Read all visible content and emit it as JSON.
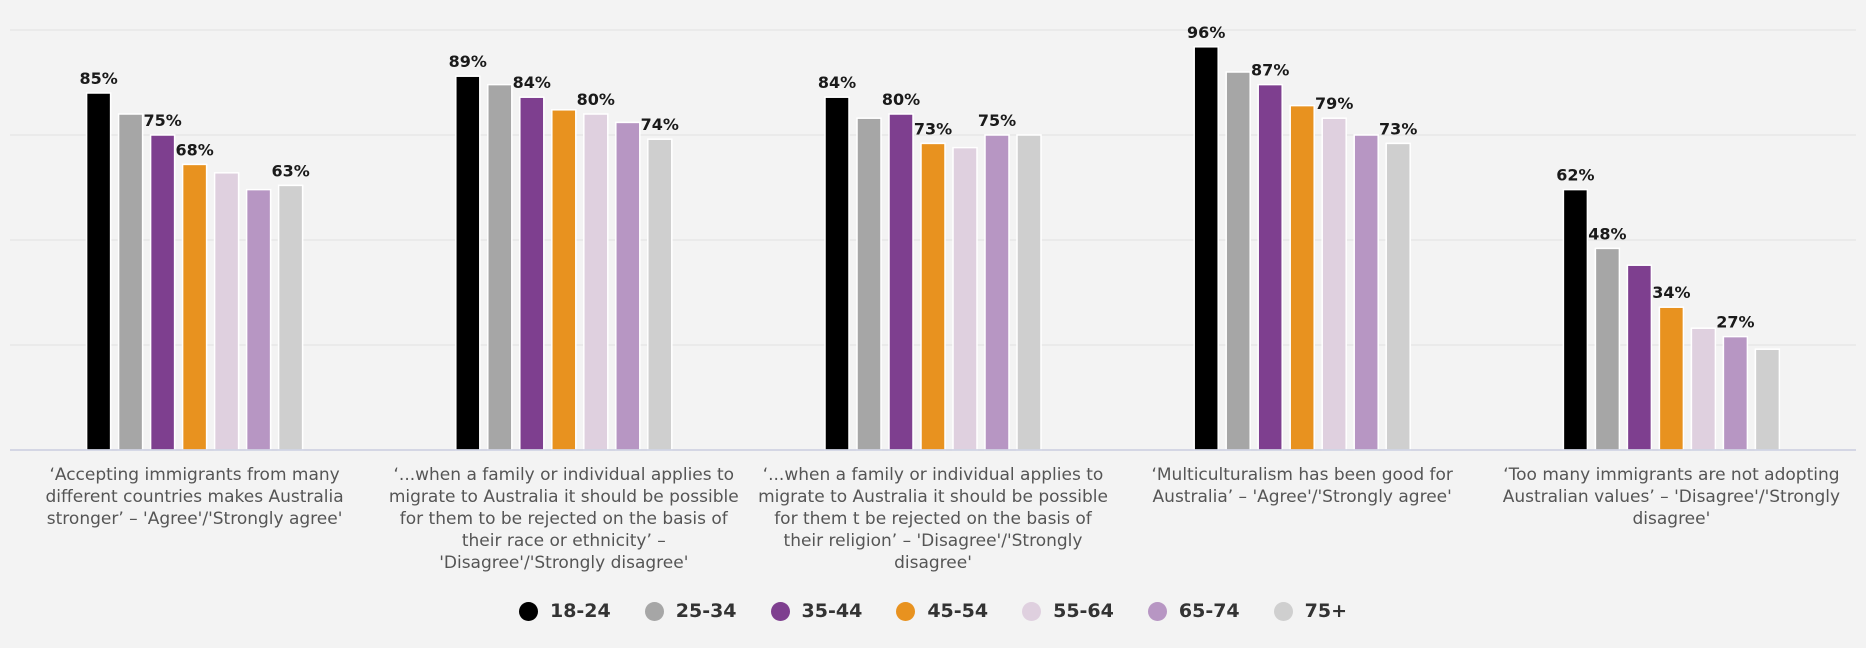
{
  "chart_data": {
    "type": "bar",
    "title": "",
    "xlabel": "",
    "ylabel": "",
    "ylim": [
      0,
      100
    ],
    "grid": true,
    "legend_position": "bottom-center",
    "categories": [
      "‘Accepting immigrants from many different countries makes Australia stronger’ – 'Agree'/'Strongly agree'",
      "‘...when a family or individual applies to migrate to Australia it should be possible for them to be rejected on the basis of their race or ethnicity’ – 'Disagree'/'Strongly disagree'",
      "‘...when a family or individual applies to migrate to Australia it should be possible for them t be rejected on the basis of their religion’ – 'Disagree'/'Strongly disagree'",
      "‘Multiculturalism has been good for Australia’ – 'Agree'/'Strongly agree'",
      "‘Too many immigrants are not adopting Australian values’ – 'Disagree'/'Strongly disagree'"
    ],
    "series": [
      {
        "name": "18-24",
        "color": "#000000",
        "values": [
          85,
          89,
          84,
          96,
          62
        ],
        "labels": [
          "85%",
          "89%",
          "84%",
          "96%",
          "62%"
        ]
      },
      {
        "name": "25-34",
        "color": "#a6a6a6",
        "values": [
          80,
          87,
          79,
          90,
          48
        ],
        "labels": [
          "",
          "",
          "",
          "",
          "48%"
        ]
      },
      {
        "name": "35-44",
        "color": "#7e3f8f",
        "values": [
          75,
          84,
          80,
          87,
          44
        ],
        "labels": [
          "75%",
          "84%",
          "80%",
          "87%",
          ""
        ]
      },
      {
        "name": "45-54",
        "color": "#e8921f",
        "values": [
          68,
          81,
          73,
          82,
          34
        ],
        "labels": [
          "68%",
          "",
          "73%",
          "",
          "34%"
        ]
      },
      {
        "name": "55-64",
        "color": "#dfd0df",
        "values": [
          66,
          80,
          72,
          79,
          29
        ],
        "labels": [
          "",
          "80%",
          "",
          "79%",
          ""
        ]
      },
      {
        "name": "65-74",
        "color": "#b796c3",
        "values": [
          62,
          78,
          75,
          75,
          27
        ],
        "labels": [
          "",
          "",
          "75%",
          "",
          "27%"
        ]
      },
      {
        "name": "75+",
        "color": "#cfcfcf",
        "values": [
          63,
          74,
          75,
          73,
          24
        ],
        "labels": [
          "63%",
          "74%",
          "",
          "73%",
          ""
        ]
      }
    ]
  }
}
